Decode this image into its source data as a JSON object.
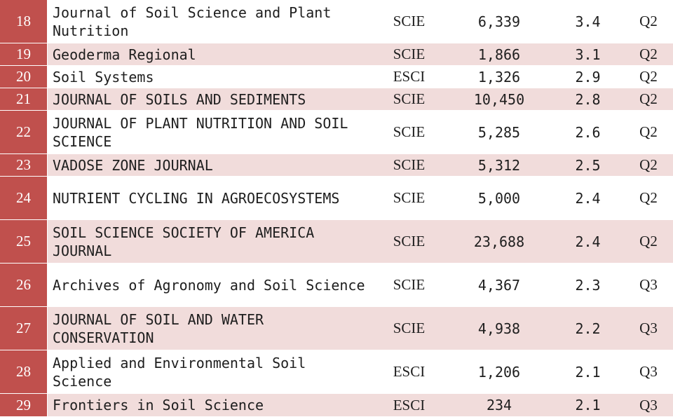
{
  "table": {
    "rows": [
      {
        "rank": "18",
        "journal": "Journal of Soil Science and Plant Nutrition",
        "index": "SCIE",
        "citations": "6,339",
        "impact_factor": "3.4",
        "quartile": "Q2"
      },
      {
        "rank": "19",
        "journal": "Geoderma Regional",
        "index": "SCIE",
        "citations": "1,866",
        "impact_factor": "3.1",
        "quartile": "Q2"
      },
      {
        "rank": "20",
        "journal": "Soil Systems",
        "index": "ESCI",
        "citations": "1,326",
        "impact_factor": "2.9",
        "quartile": "Q2"
      },
      {
        "rank": "21",
        "journal": "JOURNAL OF SOILS AND SEDIMENTS",
        "index": "SCIE",
        "citations": "10,450",
        "impact_factor": "2.8",
        "quartile": "Q2"
      },
      {
        "rank": "22",
        "journal": "JOURNAL OF PLANT NUTRITION AND SOIL SCIENCE",
        "index": "SCIE",
        "citations": "5,285",
        "impact_factor": "2.6",
        "quartile": "Q2"
      },
      {
        "rank": "23",
        "journal": "VADOSE ZONE JOURNAL",
        "index": "SCIE",
        "citations": "5,312",
        "impact_factor": "2.5",
        "quartile": "Q2"
      },
      {
        "rank": "24",
        "journal": "NUTRIENT CYCLING IN AGROECOSYSTEMS",
        "index": "SCIE",
        "citations": "5,000",
        "impact_factor": "2.4",
        "quartile": "Q2"
      },
      {
        "rank": "25",
        "journal": "SOIL SCIENCE SOCIETY OF AMERICA JOURNAL",
        "index": "SCIE",
        "citations": "23,688",
        "impact_factor": "2.4",
        "quartile": "Q2"
      },
      {
        "rank": "26",
        "journal": "Archives of Agronomy and Soil Science",
        "index": "SCIE",
        "citations": "4,367",
        "impact_factor": "2.3",
        "quartile": "Q3"
      },
      {
        "rank": "27",
        "journal": "JOURNAL OF SOIL AND WATER CONSERVATION",
        "index": "SCIE",
        "citations": "4,938",
        "impact_factor": "2.2",
        "quartile": "Q3"
      },
      {
        "rank": "28",
        "journal": "Applied and Environmental Soil Science",
        "index": "ESCI",
        "citations": "1,206",
        "impact_factor": "2.1",
        "quartile": "Q3"
      },
      {
        "rank": "29",
        "journal": "Frontiers in Soil Science",
        "index": "ESCI",
        "citations": "234",
        "impact_factor": "2.1",
        "quartile": "Q3"
      }
    ]
  },
  "colors": {
    "rank_cell": "#c0504d",
    "shaded_row": "#f1dcdb",
    "plain_row": "#ffffff",
    "text": "#1e1e1e"
  }
}
